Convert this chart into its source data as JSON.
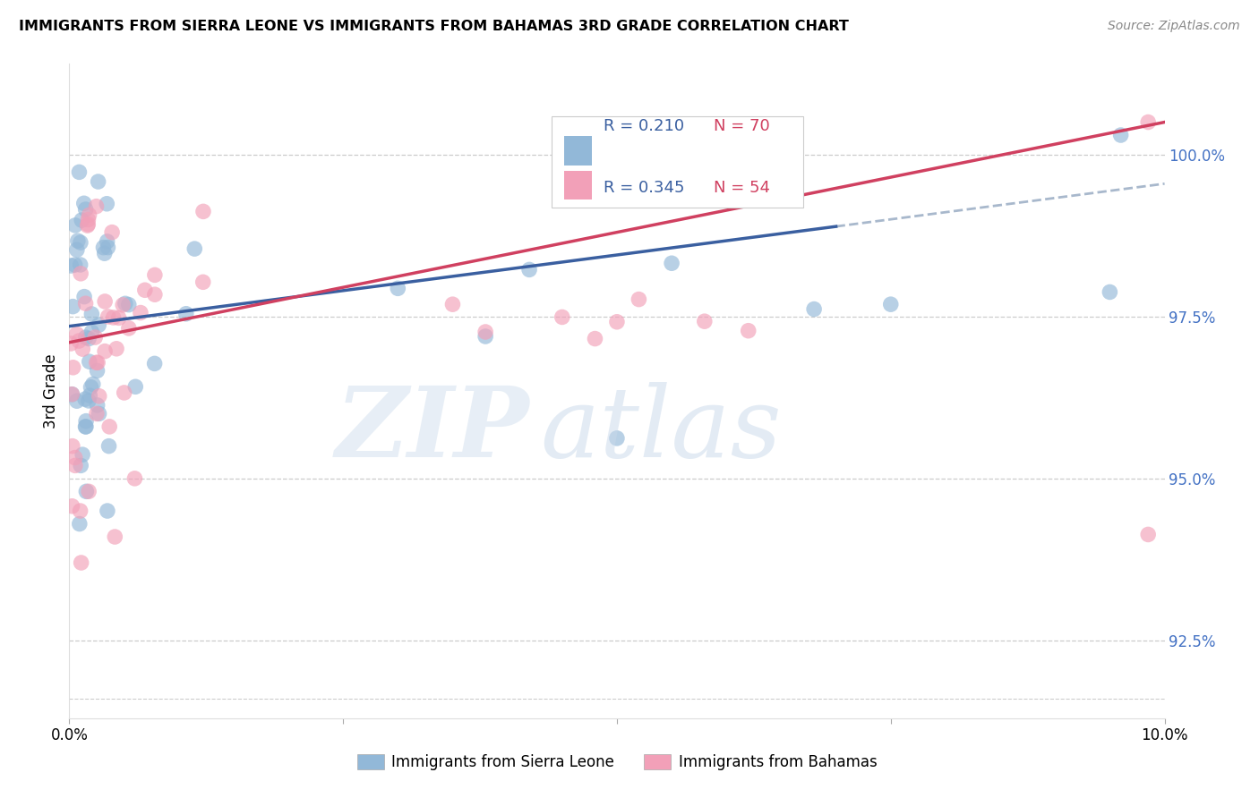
{
  "title": "IMMIGRANTS FROM SIERRA LEONE VS IMMIGRANTS FROM BAHAMAS 3RD GRADE CORRELATION CHART",
  "source": "Source: ZipAtlas.com",
  "ylabel": "3rd Grade",
  "y_ticks": [
    92.5,
    95.0,
    97.5,
    100.0
  ],
  "x_min": 0.0,
  "x_max": 10.0,
  "y_min": 91.3,
  "y_max": 101.4,
  "sierra_leone_color": "#92b8d8",
  "bahamas_color": "#f2a0b8",
  "sierra_leone_line_color": "#3a5fa0",
  "bahamas_line_color": "#d04060",
  "dashed_line_color": "#a8b8cc",
  "legend_R_color": "#3a5fa0",
  "legend_N_color": "#d04060",
  "legend_R_sierra": "0.210",
  "legend_N_sierra": "70",
  "legend_R_bahamas": "0.345",
  "legend_N_bahamas": "54",
  "sl_line_x0": 0.0,
  "sl_line_y0": 97.35,
  "sl_line_x1": 10.0,
  "sl_line_y1": 99.55,
  "sl_solid_x1": 7.0,
  "bah_line_x0": 0.0,
  "bah_line_y0": 97.1,
  "bah_line_x1": 10.0,
  "bah_line_y1": 100.5
}
